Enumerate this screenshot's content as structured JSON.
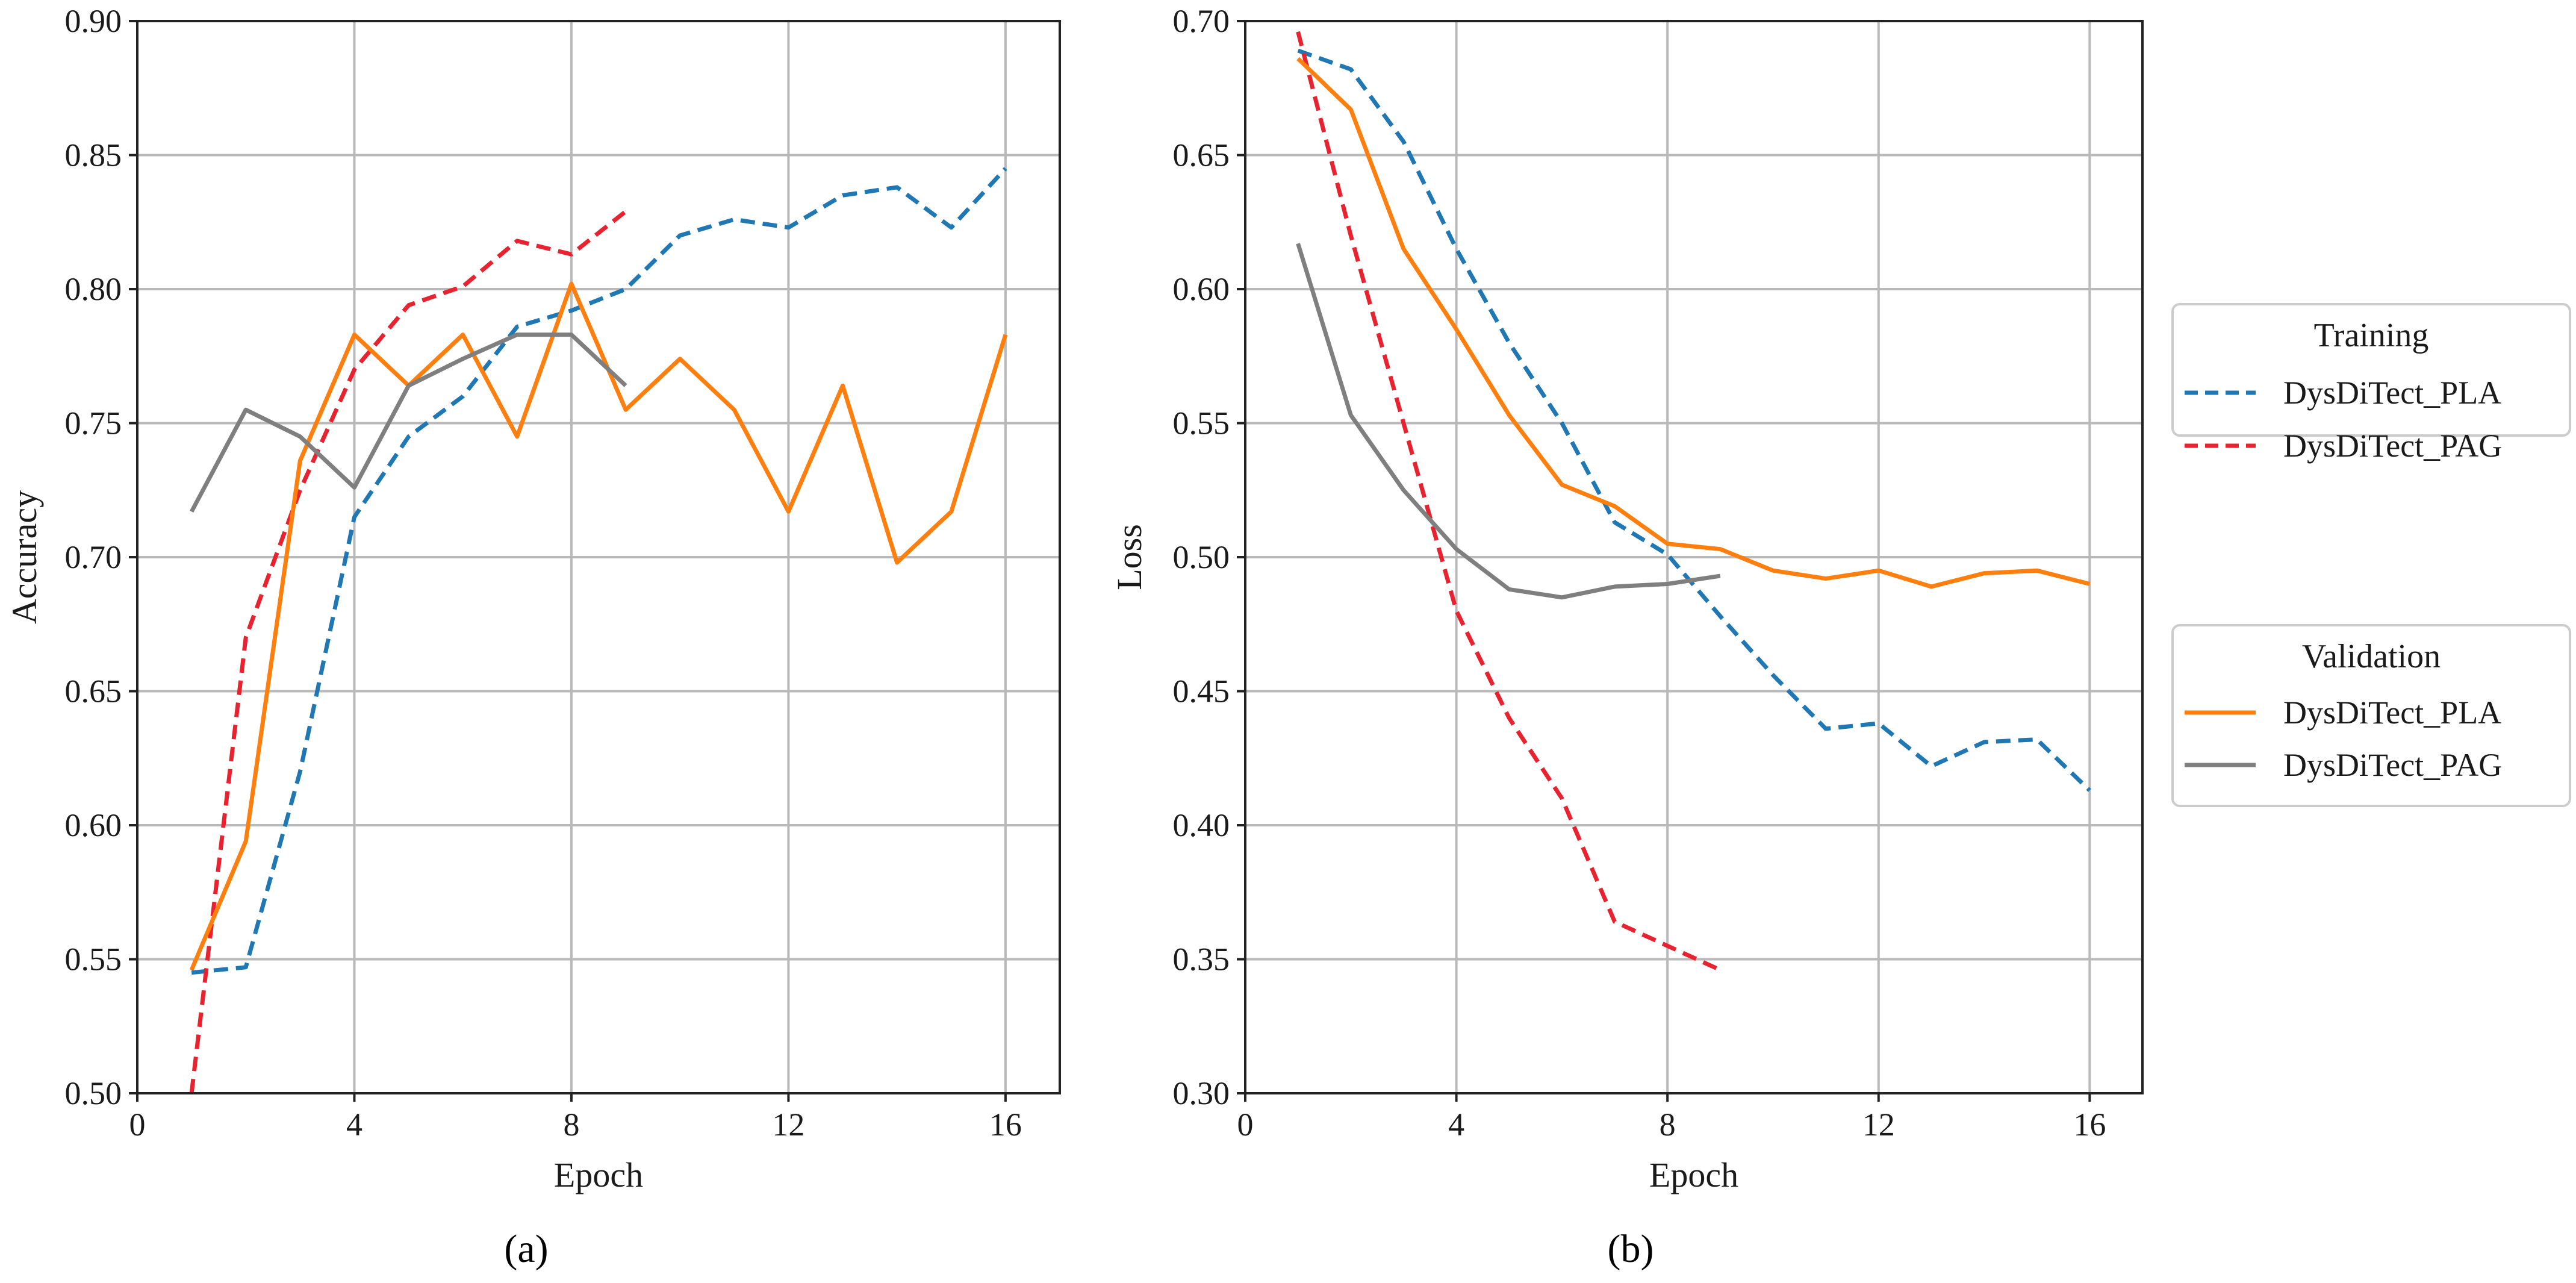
{
  "chart_data": [
    {
      "type": "line",
      "panel_label": "(a)",
      "title": "",
      "xlabel": "Epoch",
      "ylabel": "Accuracy",
      "xlim": [
        0,
        17
      ],
      "ylim": [
        0.5,
        0.9
      ],
      "xticks": [
        0,
        4,
        8,
        12,
        16
      ],
      "yticks": [
        0.5,
        0.55,
        0.6,
        0.65,
        0.7,
        0.75,
        0.8,
        0.85,
        0.9
      ],
      "xtick_labels": [
        "0",
        "4",
        "8",
        "12",
        "16"
      ],
      "ytick_labels": [
        "0.50",
        "0.55",
        "0.60",
        "0.65",
        "0.70",
        "0.75",
        "0.80",
        "0.85",
        "0.90"
      ],
      "grid": true,
      "series": [
        {
          "name": "DysDiTect_PLA",
          "group": "Training",
          "style": "dashed",
          "color": "#1f77b4",
          "x": [
            1,
            2,
            3,
            4,
            5,
            6,
            7,
            8,
            9,
            10,
            11,
            12,
            13,
            14,
            15,
            16
          ],
          "y": [
            0.545,
            0.547,
            0.62,
            0.715,
            0.745,
            0.76,
            0.786,
            0.792,
            0.8,
            0.82,
            0.826,
            0.823,
            0.835,
            0.838,
            0.823,
            0.845
          ]
        },
        {
          "name": "DysDiTect_PAG",
          "group": "Training",
          "style": "dashed",
          "color": "#e8222e",
          "x": [
            1,
            2,
            3,
            4,
            5,
            6,
            7,
            8,
            9
          ],
          "y": [
            0.5,
            0.67,
            0.725,
            0.77,
            0.794,
            0.801,
            0.818,
            0.813,
            0.829
          ]
        },
        {
          "name": "DysDiTect_PLA",
          "group": "Validation",
          "style": "solid",
          "color": "#ff7f0e",
          "x": [
            1,
            2,
            3,
            4,
            5,
            6,
            7,
            8,
            9,
            10,
            11,
            12,
            13,
            14,
            15,
            16
          ],
          "y": [
            0.546,
            0.594,
            0.736,
            0.783,
            0.764,
            0.783,
            0.745,
            0.802,
            0.755,
            0.774,
            0.755,
            0.717,
            0.764,
            0.698,
            0.717,
            0.783
          ]
        },
        {
          "name": "DysDiTect_PAG",
          "group": "Validation",
          "style": "solid",
          "color": "#7f7f7f",
          "x": [
            1,
            2,
            3,
            4,
            5,
            6,
            7,
            8,
            9
          ],
          "y": [
            0.717,
            0.755,
            0.745,
            0.726,
            0.764,
            0.774,
            0.783,
            0.783,
            0.764
          ]
        }
      ]
    },
    {
      "type": "line",
      "panel_label": "(b)",
      "title": "",
      "xlabel": "Epoch",
      "ylabel": "Loss",
      "xlim": [
        0,
        17
      ],
      "ylim": [
        0.3,
        0.7
      ],
      "xticks": [
        0,
        4,
        8,
        12,
        16
      ],
      "yticks": [
        0.3,
        0.35,
        0.4,
        0.45,
        0.5,
        0.55,
        0.6,
        0.65,
        0.7
      ],
      "xtick_labels": [
        "0",
        "4",
        "8",
        "12",
        "16"
      ],
      "ytick_labels": [
        "0.30",
        "0.35",
        "0.40",
        "0.45",
        "0.50",
        "0.55",
        "0.60",
        "0.65",
        "0.70"
      ],
      "grid": true,
      "series": [
        {
          "name": "DysDiTect_PLA",
          "group": "Training",
          "style": "dashed",
          "color": "#1f77b4",
          "x": [
            1,
            2,
            3,
            4,
            5,
            6,
            7,
            8,
            9,
            10,
            11,
            12,
            13,
            14,
            15,
            16
          ],
          "y": [
            0.689,
            0.682,
            0.655,
            0.615,
            0.58,
            0.55,
            0.513,
            0.501,
            0.478,
            0.456,
            0.436,
            0.438,
            0.422,
            0.431,
            0.432,
            0.413
          ]
        },
        {
          "name": "DysDiTect_PAG",
          "group": "Training",
          "style": "dashed",
          "color": "#e8222e",
          "x": [
            1,
            2,
            3,
            4,
            5,
            6,
            7,
            8,
            9
          ],
          "y": [
            0.696,
            0.62,
            0.55,
            0.48,
            0.44,
            0.41,
            0.364,
            0.355,
            0.346
          ]
        },
        {
          "name": "DysDiTect_PLA",
          "group": "Validation",
          "style": "solid",
          "color": "#ff7f0e",
          "x": [
            1,
            2,
            3,
            4,
            5,
            6,
            7,
            8,
            9,
            10,
            11,
            12,
            13,
            14,
            15,
            16
          ],
          "y": [
            0.686,
            0.667,
            0.615,
            0.585,
            0.553,
            0.527,
            0.519,
            0.505,
            0.503,
            0.495,
            0.492,
            0.495,
            0.489,
            0.494,
            0.495,
            0.49
          ]
        },
        {
          "name": "DysDiTect_PAG",
          "group": "Validation",
          "style": "solid",
          "color": "#7f7f7f",
          "x": [
            1,
            2,
            3,
            4,
            5,
            6,
            7,
            8,
            9
          ],
          "y": [
            0.617,
            0.553,
            0.525,
            0.503,
            0.488,
            0.485,
            0.489,
            0.49,
            0.493
          ]
        }
      ]
    }
  ],
  "legends": [
    {
      "title": "Training",
      "entries": [
        {
          "label": "DysDiTect_PLA",
          "color": "#1f77b4",
          "style": "dashed"
        },
        {
          "label": "DysDiTect_PAG",
          "color": "#e8222e",
          "style": "dashed"
        }
      ]
    },
    {
      "title": "Validation",
      "entries": [
        {
          "label": "DysDiTect_PLA",
          "color": "#ff7f0e",
          "style": "solid"
        },
        {
          "label": "DysDiTect_PAG",
          "color": "#7f7f7f",
          "style": "solid"
        }
      ]
    }
  ]
}
